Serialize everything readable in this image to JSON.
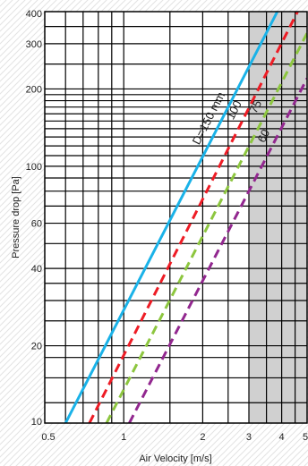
{
  "chart_data": {
    "type": "line",
    "title": "",
    "xlabel": "Air Velocity [m/s]",
    "ylabel": "Pressure drop [Pa]",
    "x_scale": "log",
    "y_scale": "log",
    "xlim": [
      0.5,
      5
    ],
    "ylim": [
      10,
      400
    ],
    "x_ticks": [
      {
        "value": 0.5,
        "label": "0.5"
      },
      {
        "value": 1,
        "label": "1"
      },
      {
        "value": 2,
        "label": "2"
      },
      {
        "value": 3,
        "label": "3"
      },
      {
        "value": 4,
        "label": "4"
      },
      {
        "value": 5,
        "label": "5"
      }
    ],
    "y_ticks": [
      {
        "value": 10,
        "label": "10"
      },
      {
        "value": 20,
        "label": "20"
      },
      {
        "value": 40,
        "label": "40"
      },
      {
        "value": 60,
        "label": "60"
      },
      {
        "value": 100,
        "label": "100"
      },
      {
        "value": 200,
        "label": "200"
      },
      {
        "value": 300,
        "label": "300"
      },
      {
        "value": 400,
        "label": "400"
      }
    ],
    "x_gridlines": [
      0.6,
      0.7,
      0.8,
      0.9,
      1,
      1.5,
      2,
      2.5,
      3,
      3.5,
      4,
      4.5
    ],
    "y_gridlines": [
      12,
      15,
      18,
      20,
      25,
      30,
      35,
      40,
      50,
      60,
      70,
      80,
      90,
      100,
      110,
      120,
      130,
      140,
      150,
      160,
      170,
      180,
      190,
      200,
      250,
      300,
      350
    ],
    "grid": true,
    "shaded_region": {
      "x_from": 3,
      "x_to": 5,
      "color": "#d0d0d0"
    },
    "series": [
      {
        "label": "D=150 mm",
        "color": "#1ab2e8",
        "style": "solid",
        "x": [
          0.6,
          3.85
        ],
        "y": [
          10,
          400
        ]
      },
      {
        "label": "100",
        "color": "#ee1c25",
        "style": "dashed",
        "x": [
          0.74,
          4.6
        ],
        "y": [
          10,
          400
        ]
      },
      {
        "label": "75",
        "color": "#8dc63f",
        "style": "dashed",
        "x": [
          0.86,
          5
        ],
        "y": [
          10,
          330
        ]
      },
      {
        "label": "60",
        "color": "#92278f",
        "style": "dashed",
        "x": [
          1.05,
          5
        ],
        "y": [
          10,
          220
        ]
      }
    ]
  }
}
